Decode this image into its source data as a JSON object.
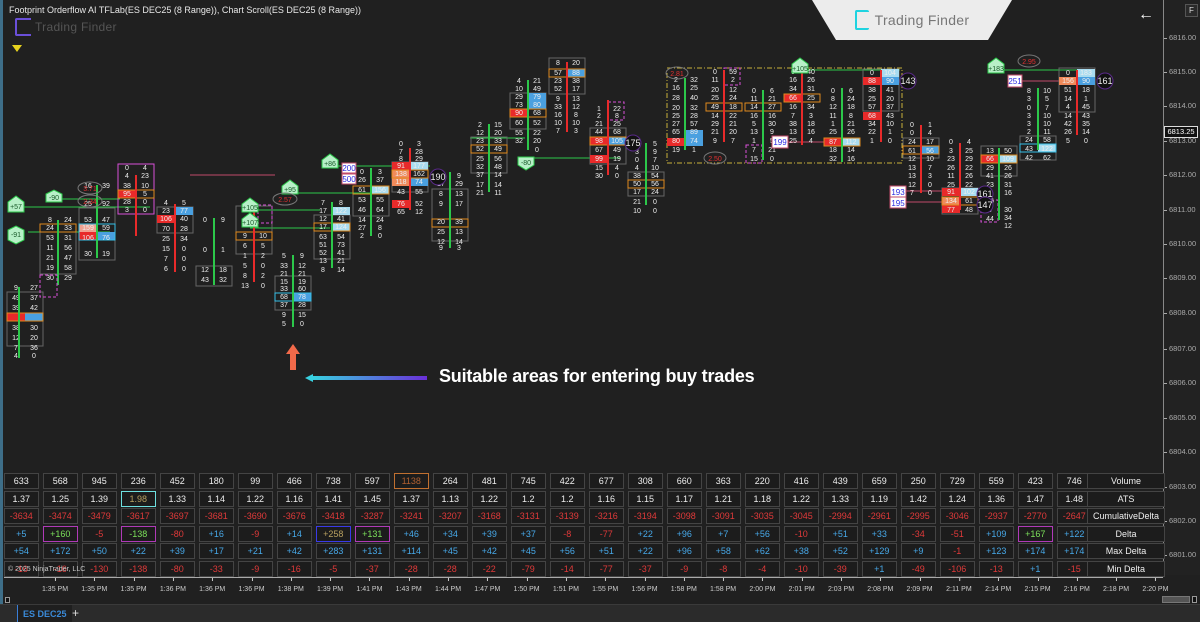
{
  "window": {
    "chart_title": "Footprint Orderflow AI TFLab(ES DEC25 (8 Range)), Chart Scroll(ES DEC25 (8 Range))",
    "watermark_text": "Trading Finder",
    "brand_tab_text": "Trading Finder",
    "back_icon": "arrow-left-icon",
    "f_button_label": "F"
  },
  "price_axis": {
    "ticks": [
      "6816.00",
      "6815.00",
      "6814.00",
      "6813.00",
      "6812.00",
      "6811.00",
      "6810.00",
      "6809.00",
      "6808.00",
      "6807.00",
      "6806.00",
      "6805.00",
      "6804.00",
      "6803.00",
      "6802.00",
      "6801.00"
    ],
    "current_price": "6813.25"
  },
  "annotation": {
    "text": "Suitable areas for entering buy trades",
    "arrow_up_color": "#f26a4a",
    "arrow_line_gradient": [
      "#38d0e0",
      "#6a2fd8"
    ]
  },
  "chart_markers": {
    "green_labels": [
      "+57",
      "-90",
      "-91",
      "+105",
      "+107",
      "+95",
      "+86",
      "-80",
      "+105",
      "+183"
    ],
    "ratio_circles": [
      "3.71",
      "2.34",
      "2.57",
      "2.81",
      "2.50",
      "2.95"
    ],
    "imbalance_counts": [
      "190",
      "175",
      "199",
      "143",
      "161",
      "193",
      "195",
      "161",
      "147",
      "251",
      "200",
      "500"
    ]
  },
  "stats": {
    "row_labels": [
      "Volume",
      "ATS",
      "CumulativeDelta",
      "Delta",
      "Max Delta",
      "Min Delta"
    ],
    "volume": [
      "633",
      "568",
      "945",
      "236",
      "452",
      "180",
      "99",
      "466",
      "738",
      "597",
      "1138",
      "264",
      "481",
      "745",
      "422",
      "677",
      "308",
      "660",
      "363",
      "220",
      "416",
      "439",
      "659",
      "250",
      "729",
      "559",
      "423",
      "746"
    ],
    "ats": [
      "1.37",
      "1.25",
      "1.39",
      "1.98",
      "1.33",
      "1.14",
      "1.22",
      "1.16",
      "1.41",
      "1.45",
      "1.37",
      "1.13",
      "1.22",
      "1.2",
      "1.2",
      "1.16",
      "1.15",
      "1.17",
      "1.21",
      "1.18",
      "1.22",
      "1.33",
      "1.19",
      "1.42",
      "1.24",
      "1.36",
      "1.47",
      "1.48"
    ],
    "cumulative_delta": [
      "-3634",
      "-3474",
      "-3479",
      "-3617",
      "-3697",
      "-3681",
      "-3690",
      "-3676",
      "-3418",
      "-3287",
      "-3241",
      "-3207",
      "-3168",
      "-3131",
      "-3139",
      "-3216",
      "-3194",
      "-3098",
      "-3091",
      "-3035",
      "-3045",
      "-2994",
      "-2961",
      "-2995",
      "-3046",
      "-2937",
      "-2770",
      "-2647"
    ],
    "delta": [
      "+5",
      "+160",
      "-5",
      "-138",
      "-80",
      "+16",
      "-9",
      "+14",
      "+258",
      "+131",
      "+46",
      "+34",
      "+39",
      "+37",
      "-8",
      "-77",
      "+22",
      "+96",
      "+7",
      "+56",
      "-10",
      "+51",
      "+33",
      "-34",
      "-51",
      "+109",
      "+167",
      "+122"
    ],
    "max_delta": [
      "+54",
      "+172",
      "+50",
      "+22",
      "+39",
      "+17",
      "+21",
      "+42",
      "+283",
      "+131",
      "+114",
      "+45",
      "+42",
      "+45",
      "+56",
      "+51",
      "+22",
      "+96",
      "+58",
      "+62",
      "+38",
      "+52",
      "+129",
      "+9",
      "-1",
      "+123",
      "+174",
      "+174"
    ],
    "min_delta": [
      "-16",
      "-16",
      "-130",
      "-138",
      "-80",
      "-33",
      "-9",
      "-16",
      "-5",
      "-37",
      "-28",
      "-28",
      "-22",
      "-79",
      "-14",
      "-77",
      "-37",
      "-9",
      "-8",
      "-4",
      "-10",
      "-39",
      "+1",
      "-49",
      "-106",
      "-13",
      "+1",
      "-15"
    ],
    "copyright": "© 2025 NinjaTrader, LLC"
  },
  "time_axis": {
    "labels": [
      "1:35 PM",
      "1:35 PM",
      "1:35 PM",
      "1:36 PM",
      "1:36 PM",
      "1:36 PM",
      "1:38 PM",
      "1:39 PM",
      "1:41 PM",
      "1:43 PM",
      "1:44 PM",
      "1:47 PM",
      "1:50 PM",
      "1:51 PM",
      "1:55 PM",
      "1:56 PM",
      "1:58 PM",
      "1:58 PM",
      "2:00 PM",
      "2:01 PM",
      "2:03 PM",
      "2:08 PM",
      "2:09 PM",
      "2:11 PM",
      "2:14 PM",
      "2:15 PM",
      "2:16 PM",
      "2:18 PM",
      "2:20 PM"
    ]
  },
  "tabs": {
    "active_tab": "ES DEC25",
    "add_label": "+"
  },
  "colors": {
    "background": "#202020",
    "bid_red": "#e82a2a",
    "ask_blue": "#4aa0e0",
    "poc_orange": "#e08a1e",
    "imbalance_purple": "#d84fd8",
    "buy_green": "#2cc84a",
    "negative_text": "#e03a3a",
    "positive_text": "#47a8e8"
  }
}
